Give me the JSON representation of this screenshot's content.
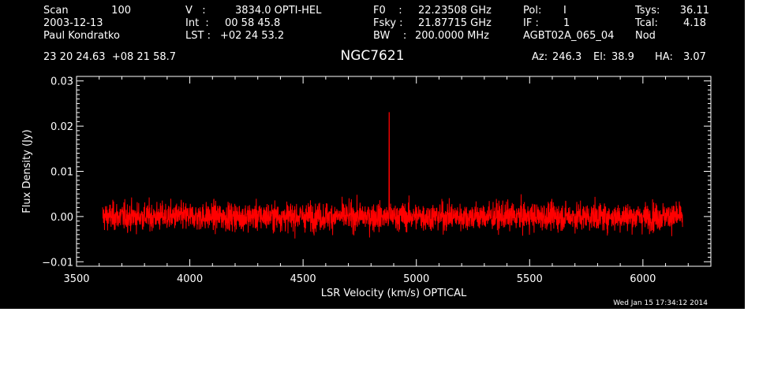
{
  "header": {
    "scan_label": "Scan",
    "scan_value": "100",
    "date": "2003-12-13",
    "observer": "Paul Kondratko",
    "v_label": "V   :",
    "v_value": "3834.0 OPTI-HEL",
    "int_label": "Int  :",
    "int_value": "00 58 45.8",
    "lst_label": "LST :",
    "lst_value": "+02 24 53.2",
    "f0_label": "F0    :",
    "f0_value": "22.23508 GHz",
    "fsky_label": "Fsky :",
    "fsky_value": "21.87715 GHz",
    "bw_label": "BW    :",
    "bw_value": "200.0000 MHz",
    "pol_label": "Pol:",
    "pol_value": "I",
    "if_label": "IF :",
    "if_value": "1",
    "project": "AGBT02A_065_04",
    "tsys_label": "Tsys:",
    "tsys_value": "36.11",
    "tcal_label": "Tcal:",
    "tcal_value": "4.18",
    "mode": "Nod",
    "coords": "23 20 24.63  +08 21 58.7",
    "az_label": "Az:",
    "az_value": "246.3",
    "el_label": "El:",
    "el_value": "38.9",
    "ha_label": "HA:",
    "ha_value": "3.07"
  },
  "timestamp": "Wed Jan 15 17:34:12 2014",
  "colors": {
    "background": "#000000",
    "axes": "#ffffff",
    "trace": "#ff0000"
  },
  "chart_data": {
    "type": "line",
    "title": "NGC7621",
    "xlabel": "LSR Velocity (km/s) OPTICAL",
    "ylabel": "Flux Density (Jy)",
    "xlim": [
      3500,
      6300
    ],
    "ylim": [
      -0.011,
      0.031
    ],
    "xticks": [
      3500,
      4000,
      4500,
      5000,
      5500,
      6000
    ],
    "xtick_labels": [
      "3500",
      "4000",
      "4500",
      "5000",
      "5500",
      "6000"
    ],
    "yticks": [
      -0.01,
      0.0,
      0.01,
      0.02,
      0.03
    ],
    "ytick_labels": [
      "−0.01",
      "0.00",
      "0.01",
      "0.02",
      "0.03"
    ],
    "grid": false,
    "series": [
      {
        "x_range": [
          3615,
          6175
        ],
        "baseline": 0.0,
        "noise_rms": 0.0017,
        "spike": {
          "x": 4880,
          "y": 0.023
        }
      }
    ]
  }
}
